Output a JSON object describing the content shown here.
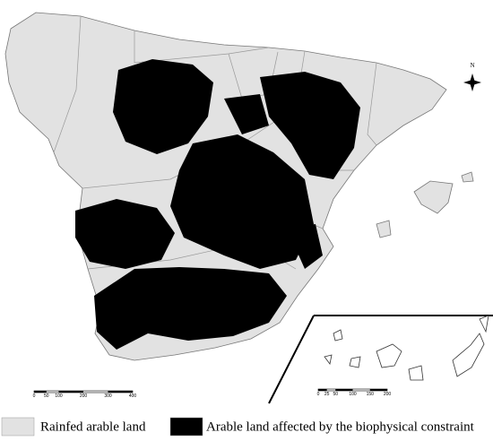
{
  "map": {
    "north_label": "N",
    "scale_bar": {
      "ticks": [
        0,
        50,
        100,
        200,
        300,
        400
      ]
    },
    "inset_scale_bar": {
      "ticks": [
        0,
        25,
        50,
        100,
        150,
        200
      ]
    }
  },
  "legend": [
    {
      "label": "Rainfed arable land",
      "color": "#e2e2e2"
    },
    {
      "label": "Arable land affected by the biophysical constraint",
      "color": "#000000"
    }
  ]
}
